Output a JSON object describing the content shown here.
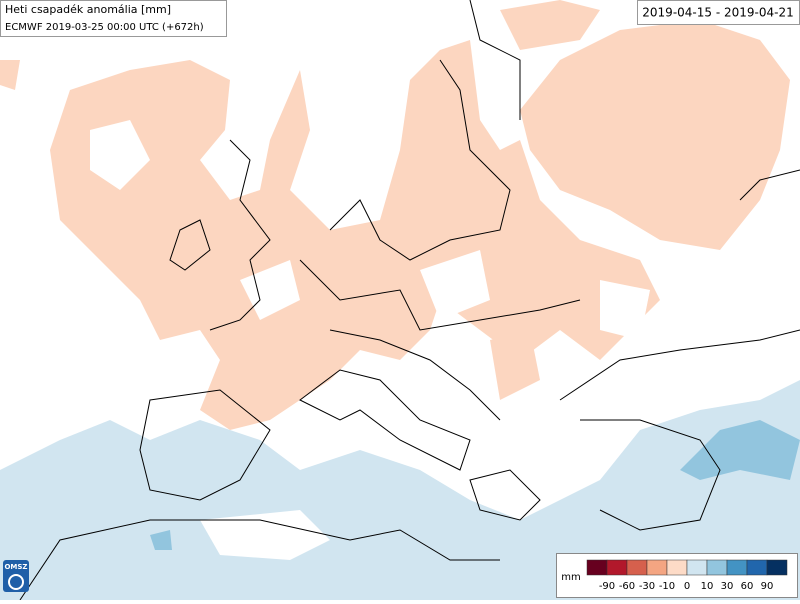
{
  "header": {
    "title": "Heti csapadék anomália [mm]",
    "subtitle": "ECMWF 2019-03-25 00:00 UTC (+672h)",
    "period": "2019-04-15 - 2019-04-21"
  },
  "legend": {
    "unit": "mm",
    "ticks": [
      -90,
      -60,
      -30,
      -10,
      0,
      10,
      30,
      60,
      90
    ],
    "colors": [
      "#67001f",
      "#b2182b",
      "#d6604d",
      "#f4a582",
      "#fddbc7",
      "#d1e5f0",
      "#92c5de",
      "#4393c3",
      "#2166ac",
      "#053061"
    ]
  },
  "logo": {
    "text": "OMSZ"
  }
}
